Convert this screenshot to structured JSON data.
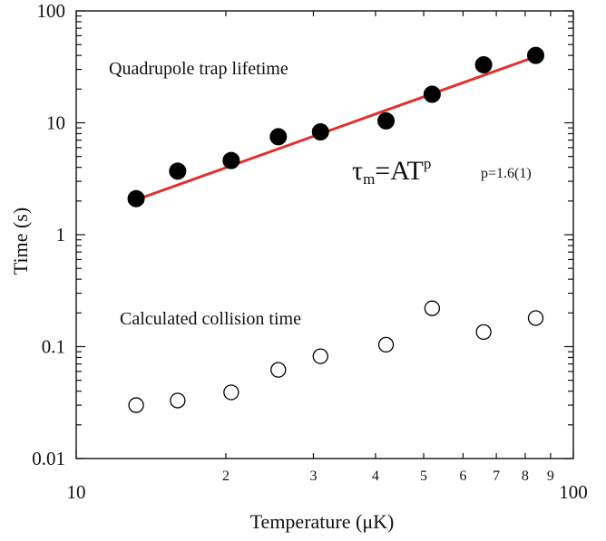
{
  "chart_data": {
    "type": "scatter",
    "xlabel": "Temperature (μK)",
    "ylabel": "Time (s)",
    "x_scale": "log",
    "y_scale": "log",
    "xlim": [
      10,
      100
    ],
    "ylim": [
      0.01,
      100
    ],
    "x_major_ticks": [
      {
        "value": 10,
        "label": "10"
      },
      {
        "value": 100,
        "label": "100"
      }
    ],
    "x_minor_ticks": [
      {
        "value": 20,
        "label": "2"
      },
      {
        "value": 30,
        "label": "3"
      },
      {
        "value": 40,
        "label": "4"
      },
      {
        "value": 50,
        "label": "5"
      },
      {
        "value": 60,
        "label": "6"
      },
      {
        "value": 70,
        "label": "7"
      },
      {
        "value": 80,
        "label": "8"
      },
      {
        "value": 90,
        "label": "9"
      }
    ],
    "y_ticks": [
      {
        "value": 0.01,
        "label": "0.01"
      },
      {
        "value": 0.1,
        "label": "0.1"
      },
      {
        "value": 1,
        "label": "1"
      },
      {
        "value": 10,
        "label": "10"
      },
      {
        "value": 100,
        "label": "100"
      }
    ],
    "series": [
      {
        "marker": "filled-circle",
        "color": "#000000",
        "x": [
          13.2,
          16.0,
          20.5,
          25.5,
          31.0,
          42.0,
          52.0,
          66.0,
          84.0
        ],
        "y": [
          2.1,
          3.7,
          4.6,
          7.5,
          8.3,
          10.4,
          18.0,
          33.0,
          40.0
        ]
      },
      {
        "marker": "open-circle",
        "color": "#000000",
        "x": [
          13.2,
          16.0,
          20.5,
          25.5,
          31.0,
          42.0,
          52.0,
          66.0,
          84.0
        ],
        "y": [
          0.03,
          0.033,
          0.039,
          0.062,
          0.082,
          0.104,
          0.22,
          0.135,
          0.18
        ]
      }
    ],
    "fit_line": {
      "color": "#e03030",
      "x": [
        13.2,
        84.0
      ],
      "y": [
        2.05,
        39.0
      ]
    },
    "annotations": {
      "upper_label": "Quadrupole trap lifetime",
      "lower_label": "Calculated collision time",
      "formula": {
        "tau": "τ",
        "sub": "m",
        "rhs": "=AT",
        "sup": "p",
        "note": "p=1.6(1)"
      }
    }
  }
}
